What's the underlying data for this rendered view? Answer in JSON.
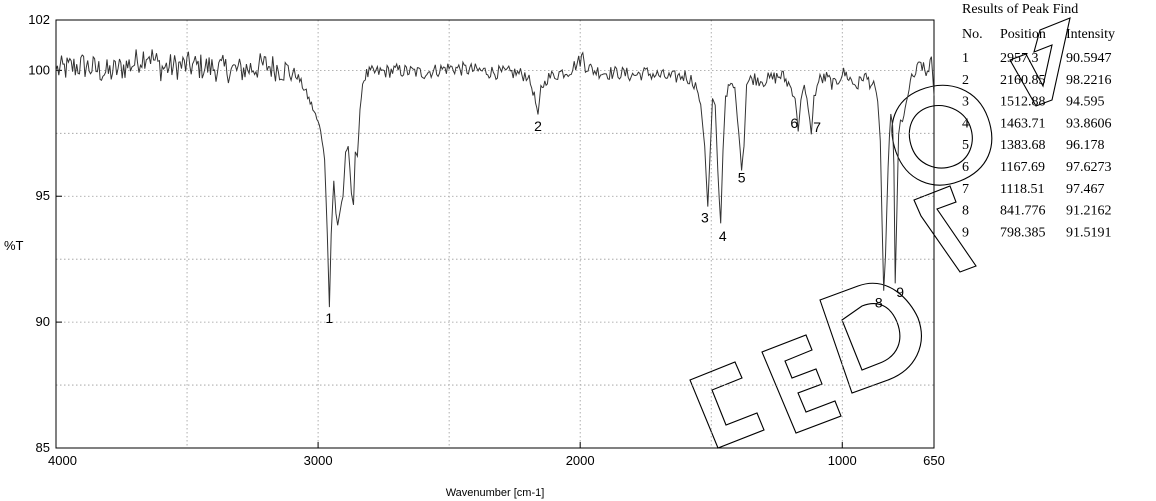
{
  "chart_data": {
    "type": "line",
    "xlabel": "Wavenumber [cm-1]",
    "ylabel": "%T",
    "xlim": [
      4000,
      650
    ],
    "ylim": [
      85,
      102
    ],
    "x_ticks": [
      4000,
      3000,
      2000,
      1000,
      650
    ],
    "y_ticks": [
      85,
      90,
      95,
      100,
      102
    ],
    "grid": true,
    "series": [
      {
        "x": [
          4000,
          3900,
          3800,
          3700,
          3650,
          3600,
          3500,
          3400,
          3300,
          3200,
          3120,
          3080,
          3050,
          3020,
          3000,
          2990,
          2975,
          2965,
          2957,
          2950,
          2940,
          2932,
          2925,
          2915,
          2905,
          2895,
          2885,
          2873,
          2865,
          2858,
          2850,
          2845,
          2840,
          2830,
          2820,
          2800,
          2700,
          2600,
          2500,
          2400,
          2300,
          2250,
          2200,
          2175,
          2161,
          2150,
          2120,
          2080,
          2040,
          2000,
          1990,
          1980,
          1950,
          1900,
          1850,
          1800,
          1750,
          1700,
          1650,
          1600,
          1560,
          1540,
          1525,
          1513,
          1505,
          1495,
          1485,
          1475,
          1464,
          1455,
          1445,
          1430,
          1410,
          1395,
          1384,
          1375,
          1365,
          1340,
          1300,
          1260,
          1230,
          1200,
          1180,
          1168,
          1158,
          1145,
          1130,
          1118,
          1108,
          1090,
          1060,
          1030,
          1000,
          980,
          960,
          940,
          920,
          900,
          880,
          865,
          855,
          848,
          842,
          835,
          825,
          815,
          808,
          803,
          798,
          792,
          785,
          778,
          770,
          760,
          740,
          720,
          700,
          680,
          660,
          650
        ],
        "y": [
          100.0,
          100.2,
          99.9,
          100.3,
          100.7,
          100.1,
          100.2,
          100.1,
          100.0,
          100.2,
          100.0,
          99.8,
          99.2,
          98.5,
          97.9,
          97.6,
          96.5,
          93.5,
          90.6,
          93.5,
          95.6,
          94.3,
          93.9,
          94.5,
          95.0,
          96.6,
          97.0,
          95.2,
          94.7,
          96.8,
          96.6,
          97.4,
          98.4,
          99.5,
          99.8,
          99.9,
          100.0,
          99.9,
          100.1,
          100.0,
          99.9,
          99.9,
          99.8,
          99.0,
          98.2,
          99.3,
          99.7,
          99.9,
          100.0,
          100.4,
          100.6,
          100.2,
          100.0,
          99.9,
          99.9,
          99.8,
          99.9,
          99.8,
          99.7,
          99.8,
          99.5,
          98.6,
          97.0,
          94.6,
          96.5,
          98.8,
          98.6,
          96.0,
          93.9,
          96.8,
          99.0,
          99.4,
          99.3,
          97.5,
          96.2,
          97.0,
          99.5,
          99.7,
          99.6,
          99.7,
          99.8,
          99.4,
          98.9,
          97.6,
          98.8,
          99.3,
          98.5,
          97.5,
          98.9,
          99.6,
          99.7,
          99.4,
          99.9,
          99.8,
          99.5,
          99.4,
          99.8,
          99.6,
          99.4,
          98.8,
          97.2,
          93.9,
          91.2,
          92.6,
          96.2,
          98.4,
          97.8,
          96.2,
          91.5,
          94.2,
          97.5,
          98.1,
          97.8,
          98.5,
          99.5,
          99.9,
          100.3,
          99.8,
          100.5,
          99.0
        ]
      }
    ],
    "peak_labels": [
      "1",
      "2",
      "3",
      "4",
      "5",
      "6",
      "7",
      "8",
      "9"
    ],
    "results_table": {
      "title": "Results of Peak Find",
      "headers": [
        "No.",
        "Position",
        "Intensity"
      ],
      "rows": [
        [
          "1",
          "2957.3",
          "90.5947"
        ],
        [
          "2",
          "2160.85",
          "98.2216"
        ],
        [
          "3",
          "1512.88",
          "94.595"
        ],
        [
          "4",
          "1463.71",
          "93.8606"
        ],
        [
          "5",
          "1383.68",
          "96.178"
        ],
        [
          "6",
          "1167.69",
          "97.6273"
        ],
        [
          "7",
          "1118.51",
          "97.467"
        ],
        [
          "8",
          "841.776",
          "91.2162"
        ],
        [
          "9",
          "798.385",
          "91.5191"
        ]
      ]
    },
    "peaks": [
      {
        "label": "1",
        "x": 2957.3,
        "y": 90.5947
      },
      {
        "label": "2",
        "x": 2160.85,
        "y": 98.2216
      },
      {
        "label": "3",
        "x": 1512.88,
        "y": 94.595
      },
      {
        "label": "4",
        "x": 1463.71,
        "y": 93.8606
      },
      {
        "label": "5",
        "x": 1383.68,
        "y": 96.178
      },
      {
        "label": "6",
        "x": 1167.69,
        "y": 97.6273
      },
      {
        "label": "7",
        "x": 1118.51,
        "y": 97.467
      },
      {
        "label": "8",
        "x": 841.776,
        "y": 91.2162
      },
      {
        "label": "9",
        "x": 798.385,
        "y": 91.5191
      }
    ]
  }
}
